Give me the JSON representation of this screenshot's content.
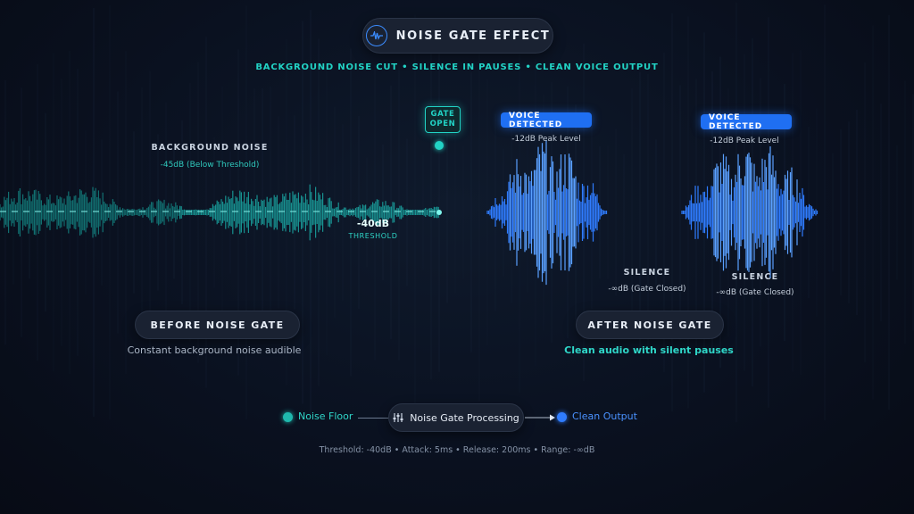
{
  "header": {
    "title": "NOISE GATE EFFECT",
    "icon": "waveform-icon",
    "subtitle": "BACKGROUND NOISE CUT • SILENCE IN PAUSES • CLEAN VOICE OUTPUT"
  },
  "gate": {
    "label_line1": "GATE",
    "label_line2": "OPEN"
  },
  "before_region": {
    "noise_label": "BACKGROUND NOISE",
    "noise_level": "-45dB (Below Threshold)",
    "threshold_value": "-40dB",
    "threshold_label": "THRESHOLD",
    "section_title": "BEFORE NOISE GATE",
    "description": "Constant background noise audible"
  },
  "after_region": {
    "voice_bursts": [
      {
        "badge": "VOICE DETECTED",
        "peak": "-12dB Peak Level"
      },
      {
        "badge": "VOICE DETECTED",
        "peak": "-12dB Peak Level"
      }
    ],
    "silences": [
      {
        "label": "SILENCE",
        "level": "-∞dB (Gate Closed)"
      },
      {
        "label": "SILENCE",
        "level": "-∞dB (Gate Closed)"
      }
    ],
    "section_title": "AFTER NOISE GATE",
    "description": "Clean audio with silent pauses"
  },
  "flow": {
    "input_label": "Noise Floor",
    "process_label": "Noise Gate Processing",
    "process_icon": "sliders-icon",
    "output_label": "Clean Output"
  },
  "footer": "Threshold: -40dB • Attack: 5ms • Release: 200ms • Range: -∞dB",
  "colors": {
    "teal": "#22d3c5",
    "blue": "#2f7cff",
    "background": "#0a1120"
  }
}
